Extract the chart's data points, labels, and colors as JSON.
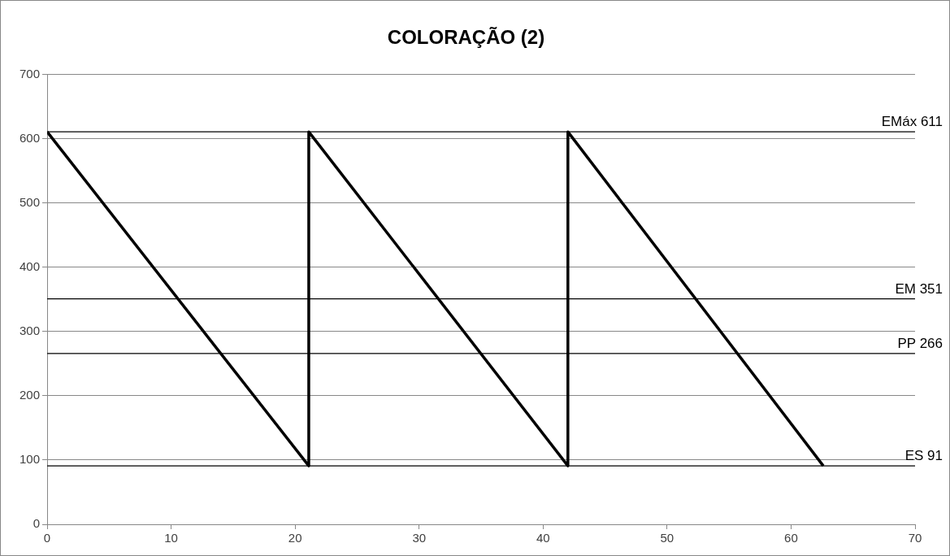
{
  "chart_data": {
    "type": "line",
    "title": "COLORAÇÃO (2)",
    "series": [
      {
        "color": "#000000",
        "x": [
          0,
          21.1,
          21.1,
          42,
          42,
          62.6
        ],
        "values": [
          611,
          91,
          611,
          91,
          611,
          91
        ]
      }
    ],
    "xlim": [
      0,
      70
    ],
    "xticks": [
      0,
      10,
      20,
      30,
      40,
      50,
      60,
      70
    ],
    "ylim": [
      0,
      700
    ],
    "yticks": [
      0,
      100,
      200,
      300,
      400,
      500,
      600,
      700
    ],
    "grid": "y",
    "legend": false,
    "marker": "none",
    "line_style": "solid",
    "ref_lines": [
      {
        "axis": "y",
        "value": 611,
        "label": "EMáx 611",
        "color": "#000000"
      },
      {
        "axis": "y",
        "value": 351,
        "label": "EM 351",
        "color": "#000000"
      },
      {
        "axis": "y",
        "value": 266,
        "label": "PP 266",
        "color": "#000000"
      },
      {
        "axis": "y",
        "value": 91,
        "label": "ES 91",
        "color": "#000000"
      }
    ]
  }
}
